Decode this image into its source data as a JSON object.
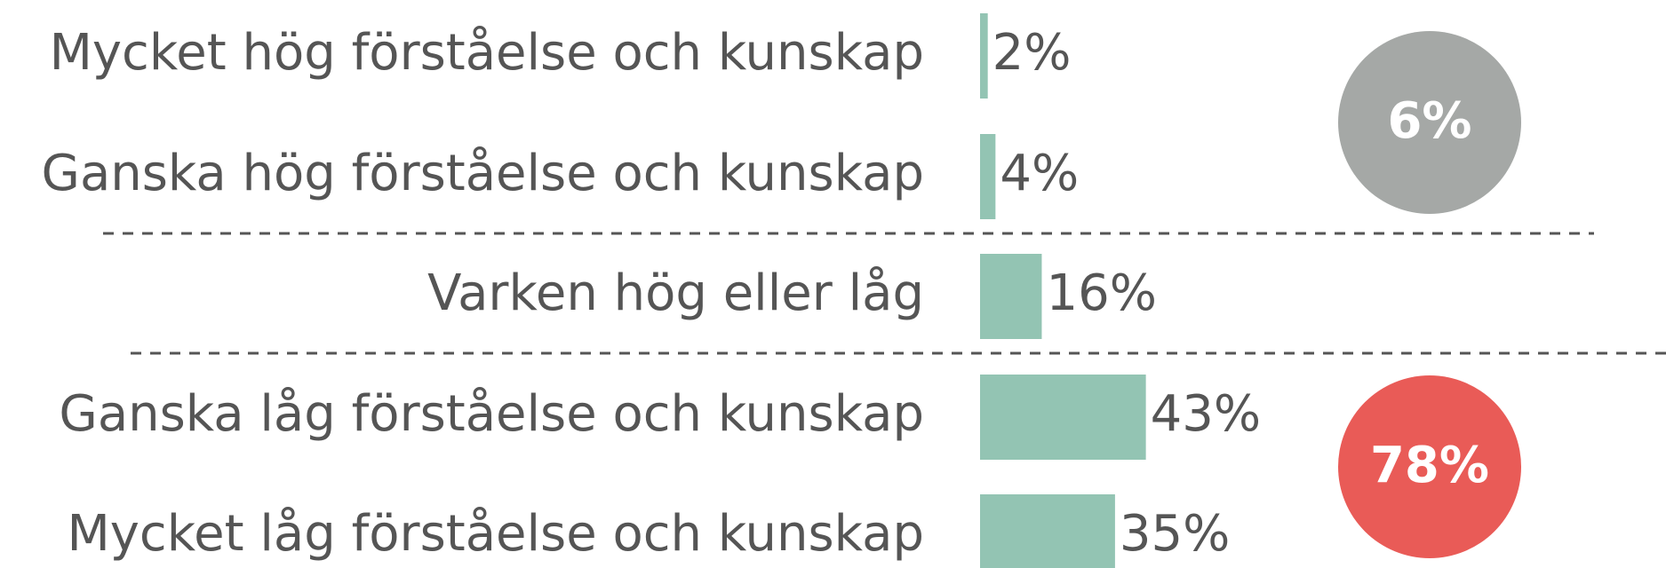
{
  "chart_data": {
    "type": "bar",
    "orientation": "horizontal",
    "categories": [
      "Mycket hög förståelse och kunskap",
      "Ganska hög förståelse och kunskap",
      "Varken hög eller låg",
      "Ganska låg förståelse och kunskap",
      "Mycket låg förståelse och kunskap"
    ],
    "values": [
      2,
      4,
      16,
      43,
      35
    ],
    "value_labels": [
      "2%",
      "4%",
      "16%",
      "43%",
      "35%"
    ],
    "color": "#93c4b3",
    "annotations": [
      {
        "text": "6%",
        "color": "#a5a8a6"
      },
      {
        "text": "78%",
        "color": "#e95b57"
      }
    ]
  }
}
